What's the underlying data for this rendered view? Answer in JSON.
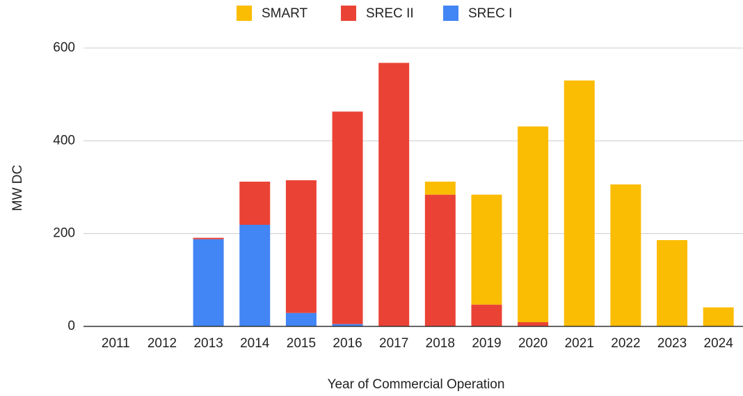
{
  "chart_data": {
    "type": "stacked_bar",
    "categories": [
      "2011",
      "2012",
      "2013",
      "2014",
      "2015",
      "2016",
      "2017",
      "2018",
      "2019",
      "2020",
      "2021",
      "2022",
      "2023",
      "2024"
    ],
    "series": [
      {
        "name": "SMART",
        "color": "#fbbc04",
        "values": [
          0,
          0,
          0,
          0,
          0,
          0,
          0,
          28,
          237,
          422,
          530,
          306,
          186,
          41
        ]
      },
      {
        "name": "SREC II",
        "color": "#ea4335",
        "values": [
          0,
          0,
          3,
          93,
          286,
          458,
          568,
          284,
          47,
          9,
          0,
          0,
          0,
          0
        ]
      },
      {
        "name": "SREC I",
        "color": "#4285f4",
        "values": [
          0,
          0,
          188,
          219,
          29,
          5,
          0,
          0,
          0,
          0,
          0,
          0,
          0,
          0
        ]
      }
    ],
    "y_label": "MW DC",
    "x_label": "Year of Commercial Operation",
    "ylim": [
      0,
      600
    ],
    "yticks": [
      0,
      200,
      400,
      600
    ],
    "grid": true,
    "legend": "top"
  }
}
